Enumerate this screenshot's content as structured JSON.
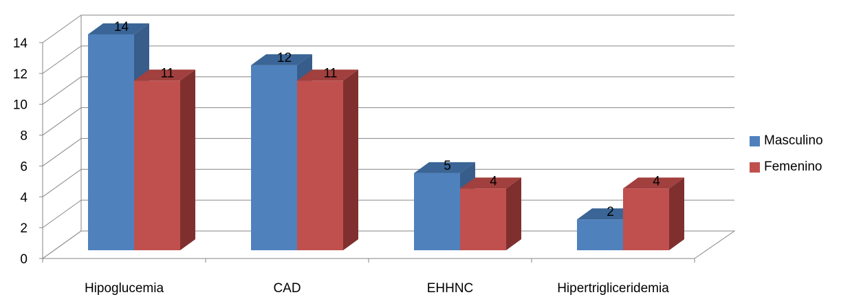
{
  "chart_data": {
    "type": "bar",
    "title": "",
    "xlabel": "",
    "ylabel": "",
    "categories": [
      "Hipoglucemia",
      "CAD",
      "EHHNC",
      "Hipertrigliceridemia"
    ],
    "series": [
      {
        "name": "Masculino",
        "values": [
          14,
          12,
          5,
          2
        ],
        "color": "#4F81BD",
        "side_color": "#385D8A",
        "top_color": "#3B6596"
      },
      {
        "name": "Femenino",
        "values": [
          11,
          11,
          4,
          4
        ],
        "color": "#C0504D",
        "side_color": "#7F302E",
        "top_color": "#A1403E"
      }
    ],
    "ylim": [
      0,
      14
    ],
    "yticks": [
      "0",
      "2",
      "4",
      "6",
      "8",
      "10",
      "12",
      "14"
    ],
    "grid": true,
    "legend_position": "right",
    "data_labels": true,
    "style": "3d-clustered-column"
  }
}
